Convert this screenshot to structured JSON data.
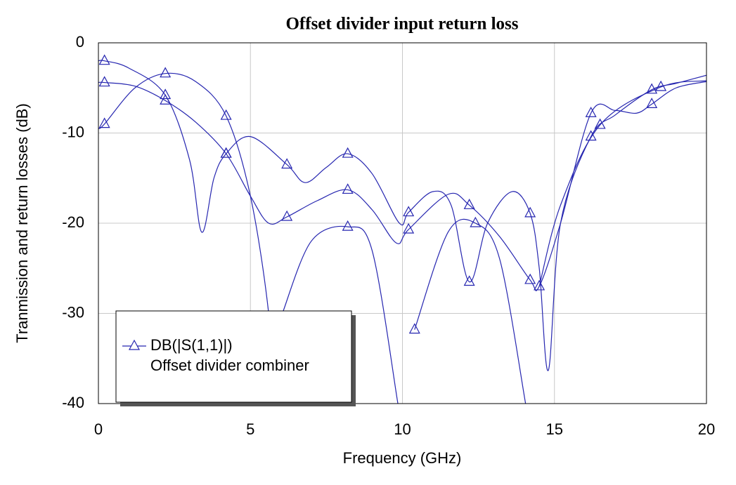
{
  "chart_data": {
    "type": "line",
    "title": "Offset divider input return loss",
    "xlabel": "Frequency (GHz)",
    "ylabel": "Tranmission and return losses (dB)",
    "xlim": [
      0,
      20
    ],
    "xticks": [
      0,
      5,
      10,
      15,
      20
    ],
    "ylim": [
      -40,
      0
    ],
    "yticks": [
      -40,
      -30,
      -20,
      -10,
      0
    ],
    "grid": true,
    "legend": "bottom-left",
    "legend_subtitle": "Offset divider combiner",
    "series": [
      {
        "name": "DB(|S(1,1)|)",
        "color": "#2626b0",
        "x": [
          0,
          0.2,
          1,
          2.2,
          3,
          3.4,
          3.8,
          4.2,
          5,
          6.2,
          6.8,
          7.5,
          8.2,
          9,
          9.9,
          10.2,
          11,
          11.6,
          12.2,
          12.8,
          13.6,
          14.2,
          14.5,
          14.8,
          15.2,
          16.2,
          17,
          18.2,
          19,
          20
        ],
        "values": [
          -2,
          -2,
          -2.8,
          -5.8,
          -13,
          -21,
          -15,
          -12.3,
          -10.4,
          -13.5,
          -15.5,
          -13.8,
          -12.3,
          -14.5,
          -20,
          -18.8,
          -16.5,
          -18,
          -26.5,
          -20,
          -16.5,
          -18.9,
          -25,
          -36.3,
          -20,
          -10.4,
          -8,
          -5.2,
          -4.5,
          -3.6
        ],
        "markers": {
          "x": [
            0.2,
            2.2,
            4.2,
            6.2,
            8.2,
            10.2,
            12.2,
            14.2,
            16.2,
            18.2
          ],
          "values": [
            -2,
            -5.8,
            -12.3,
            -13.5,
            -12.3,
            -18.8,
            -26.5,
            -18.9,
            -10.4,
            -5.2
          ]
        }
      },
      {
        "color": "#2626b0",
        "x": [
          0,
          0.2,
          1.2,
          2.2,
          3.2,
          4.2,
          5,
          5.6,
          6.2,
          7.2,
          8.2,
          9,
          9.8,
          10.2,
          11.5,
          12.2,
          13.2,
          14.2,
          14.5,
          15.2,
          16.2,
          17,
          17.7,
          18.2,
          19,
          20
        ],
        "values": [
          -4.4,
          -4.4,
          -4.8,
          -6.4,
          -8.8,
          -12.3,
          -17,
          -20,
          -19.3,
          -17.5,
          -16.3,
          -18.5,
          -22.2,
          -20.7,
          -16.8,
          -18,
          -21.5,
          -26.3,
          -27,
          -20,
          -7.8,
          -7.5,
          -7.8,
          -6.8,
          -5,
          -4.3
        ],
        "markers": {
          "x": [
            0.2,
            2.2,
            4.2,
            6.2,
            8.2,
            10.2,
            12.2,
            14.2,
            16.2,
            18.2
          ],
          "values": [
            -4.4,
            -6.4,
            -12.3,
            -19.3,
            -16.3,
            -20.7,
            -18,
            -26.3,
            -7.8,
            -6.8
          ]
        }
      },
      {
        "color": "#2626b0",
        "x": [
          0,
          0.2,
          1.2,
          2.2,
          3.2,
          4.2,
          5,
          5.6,
          5.75,
          5.95,
          6.05,
          7,
          8.2,
          9,
          9.85,
          10.25,
          10.4,
          11.5,
          12.4,
          13.2,
          14.05,
          14.35,
          14.5,
          15.2,
          16.5,
          18.5,
          20
        ],
        "values": [
          -9.5,
          -9,
          -5,
          -3.4,
          -4.3,
          -8.1,
          -17,
          -30,
          -40,
          null,
          -30,
          -22,
          -20.4,
          -23,
          -40,
          null,
          -31.8,
          -21,
          -20,
          -24,
          -40,
          null,
          -27,
          -18,
          -9.1,
          -4.9,
          -4.2
        ],
        "markers": {
          "x": [
            0.2,
            2.2,
            4.2,
            8.2,
            10.4,
            12.4,
            14.5,
            16.5,
            18.5
          ],
          "values": [
            -9,
            -3.4,
            -8.1,
            -20.4,
            -31.8,
            -20,
            -27,
            -9.1,
            -4.9
          ]
        }
      }
    ]
  }
}
